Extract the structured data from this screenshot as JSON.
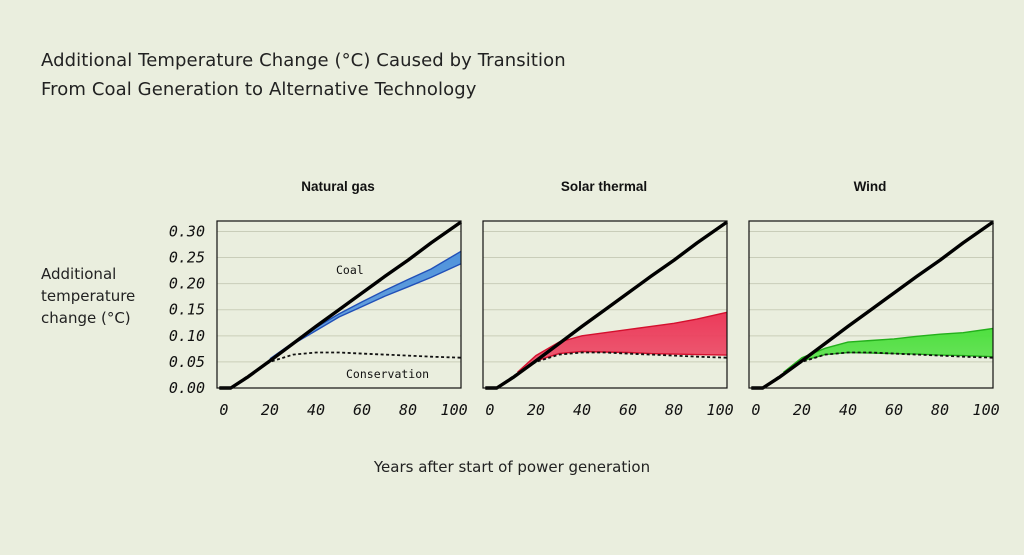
{
  "title_lines": [
    "Additional Temperature Change (°C) Caused by Transition",
    "From Coal Generation to Alternative Technology"
  ],
  "ylabel_lines": [
    "Additional",
    "temperature",
    "change (°C)"
  ],
  "xlabel": "Years after start of power generation",
  "colors": {
    "background": "#eaeede",
    "gas_fill": "#4f93dc",
    "gas_line": "#2150b8",
    "solar_fill": "#ec3a5a",
    "solar_line": "#d4102e",
    "wind_fill": "#4fe040",
    "wind_line": "#24b01c",
    "coal_line": "#000000",
    "grid": "#c9cdb9"
  },
  "chart_data": [
    {
      "type": "line",
      "title": "Natural gas",
      "x_ticks": [
        0,
        20,
        40,
        60,
        80,
        100
      ],
      "y_ticks": [
        "0.00",
        "0.05",
        "0.10",
        "0.15",
        "0.20",
        "0.25",
        "0.30"
      ],
      "xlim": [
        -3,
        103
      ],
      "ylim": [
        0,
        0.32
      ],
      "annotations": [
        "Coal",
        "Conservation"
      ],
      "coal": [
        [
          -2,
          0
        ],
        [
          3,
          0
        ],
        [
          10,
          0.02
        ],
        [
          20,
          0.052
        ],
        [
          30,
          0.085
        ],
        [
          40,
          0.118
        ],
        [
          50,
          0.15
        ],
        [
          60,
          0.182
        ],
        [
          70,
          0.214
        ],
        [
          80,
          0.245
        ],
        [
          90,
          0.278
        ],
        [
          103,
          0.318
        ]
      ],
      "conservation": [
        [
          -2,
          0
        ],
        [
          3,
          0
        ],
        [
          10,
          0.022
        ],
        [
          20,
          0.05
        ],
        [
          30,
          0.064
        ],
        [
          40,
          0.068
        ],
        [
          50,
          0.068
        ],
        [
          60,
          0.066
        ],
        [
          70,
          0.064
        ],
        [
          80,
          0.062
        ],
        [
          90,
          0.06
        ],
        [
          103,
          0.058
        ]
      ],
      "band_upper": [
        [
          20,
          0.056
        ],
        [
          30,
          0.087
        ],
        [
          40,
          0.116
        ],
        [
          50,
          0.142
        ],
        [
          60,
          0.165
        ],
        [
          70,
          0.187
        ],
        [
          80,
          0.208
        ],
        [
          90,
          0.228
        ],
        [
          103,
          0.262
        ]
      ],
      "band_lower": [
        [
          20,
          0.052
        ],
        [
          30,
          0.084
        ],
        [
          40,
          0.11
        ],
        [
          50,
          0.136
        ],
        [
          60,
          0.156
        ],
        [
          70,
          0.176
        ],
        [
          80,
          0.194
        ],
        [
          90,
          0.212
        ],
        [
          103,
          0.238
        ]
      ]
    },
    {
      "type": "line",
      "title": "Solar thermal",
      "x_ticks": [
        0,
        20,
        40,
        60,
        80,
        100
      ],
      "y_ticks": [
        "0.00",
        "0.05",
        "0.10",
        "0.15",
        "0.20",
        "0.25",
        "0.30"
      ],
      "xlim": [
        -3,
        103
      ],
      "ylim": [
        0,
        0.32
      ],
      "coal": [
        [
          -2,
          0
        ],
        [
          3,
          0
        ],
        [
          10,
          0.02
        ],
        [
          20,
          0.052
        ],
        [
          30,
          0.085
        ],
        [
          40,
          0.118
        ],
        [
          50,
          0.15
        ],
        [
          60,
          0.182
        ],
        [
          70,
          0.214
        ],
        [
          80,
          0.245
        ],
        [
          90,
          0.278
        ],
        [
          103,
          0.318
        ]
      ],
      "conservation": [
        [
          -2,
          0
        ],
        [
          3,
          0
        ],
        [
          10,
          0.022
        ],
        [
          20,
          0.05
        ],
        [
          30,
          0.064
        ],
        [
          40,
          0.068
        ],
        [
          50,
          0.068
        ],
        [
          60,
          0.066
        ],
        [
          70,
          0.064
        ],
        [
          80,
          0.062
        ],
        [
          90,
          0.06
        ],
        [
          103,
          0.058
        ]
      ],
      "band_upper": [
        [
          12,
          0.03
        ],
        [
          20,
          0.062
        ],
        [
          30,
          0.088
        ],
        [
          40,
          0.1
        ],
        [
          50,
          0.106
        ],
        [
          60,
          0.112
        ],
        [
          70,
          0.118
        ],
        [
          80,
          0.124
        ],
        [
          90,
          0.132
        ],
        [
          103,
          0.145
        ]
      ],
      "band_lower": [
        [
          12,
          0.028
        ],
        [
          20,
          0.052
        ],
        [
          30,
          0.066
        ],
        [
          40,
          0.07
        ],
        [
          50,
          0.069
        ],
        [
          60,
          0.068
        ],
        [
          70,
          0.066
        ],
        [
          80,
          0.065
        ],
        [
          90,
          0.064
        ],
        [
          103,
          0.063
        ]
      ]
    },
    {
      "type": "line",
      "title": "Wind",
      "x_ticks": [
        0,
        20,
        40,
        60,
        80,
        100
      ],
      "y_ticks": [
        "0.00",
        "0.05",
        "0.10",
        "0.15",
        "0.20",
        "0.25",
        "0.30"
      ],
      "xlim": [
        -3,
        103
      ],
      "ylim": [
        0,
        0.32
      ],
      "coal": [
        [
          -2,
          0
        ],
        [
          3,
          0
        ],
        [
          10,
          0.02
        ],
        [
          20,
          0.052
        ],
        [
          30,
          0.085
        ],
        [
          40,
          0.118
        ],
        [
          50,
          0.15
        ],
        [
          60,
          0.182
        ],
        [
          70,
          0.214
        ],
        [
          80,
          0.245
        ],
        [
          90,
          0.278
        ],
        [
          103,
          0.318
        ]
      ],
      "conservation": [
        [
          -2,
          0
        ],
        [
          3,
          0
        ],
        [
          10,
          0.022
        ],
        [
          20,
          0.05
        ],
        [
          30,
          0.064
        ],
        [
          40,
          0.068
        ],
        [
          50,
          0.068
        ],
        [
          60,
          0.066
        ],
        [
          70,
          0.064
        ],
        [
          80,
          0.062
        ],
        [
          90,
          0.06
        ],
        [
          103,
          0.058
        ]
      ],
      "band_upper": [
        [
          12,
          0.03
        ],
        [
          20,
          0.058
        ],
        [
          30,
          0.076
        ],
        [
          40,
          0.088
        ],
        [
          50,
          0.091
        ],
        [
          60,
          0.094
        ],
        [
          70,
          0.099
        ],
        [
          80,
          0.103
        ],
        [
          90,
          0.106
        ],
        [
          103,
          0.114
        ]
      ],
      "band_lower": [
        [
          12,
          0.028
        ],
        [
          20,
          0.052
        ],
        [
          30,
          0.064
        ],
        [
          40,
          0.068
        ],
        [
          50,
          0.067
        ],
        [
          60,
          0.066
        ],
        [
          70,
          0.065
        ],
        [
          80,
          0.063
        ],
        [
          90,
          0.062
        ],
        [
          103,
          0.06
        ]
      ]
    }
  ]
}
